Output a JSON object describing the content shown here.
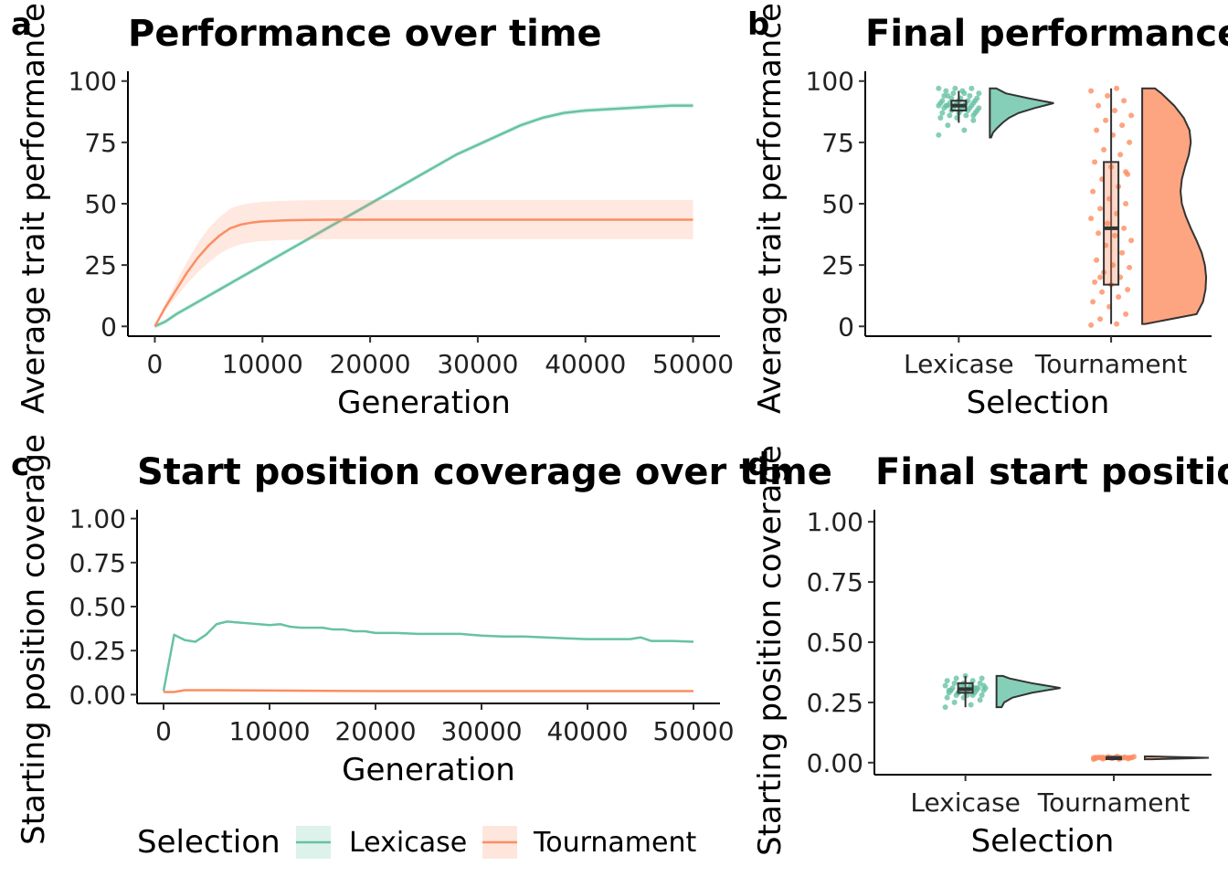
{
  "colors": {
    "lexicase": "#66c2a5",
    "tournament": "#fc8d62",
    "axis": "#000000"
  },
  "legend": {
    "title": "Selection",
    "items": [
      "Lexicase",
      "Tournament"
    ]
  },
  "chart_data": [
    {
      "panel": "a",
      "type": "line",
      "title": "Performance over time",
      "xlabel": "Generation",
      "ylabel": "Average trait performance",
      "xlim": [
        -2500,
        52500
      ],
      "ylim": [
        -4,
        104
      ],
      "xticks": [
        0,
        10000,
        20000,
        30000,
        40000,
        50000
      ],
      "xticklabels": [
        "0",
        "10000",
        "20000",
        "30000",
        "40000",
        "50000"
      ],
      "yticks": [
        0,
        25,
        50,
        75,
        100
      ],
      "yticklabels": [
        "0",
        "25",
        "50",
        "75",
        "100"
      ],
      "series": [
        {
          "name": "Lexicase",
          "x": [
            0,
            1000,
            2000,
            4000,
            6000,
            8000,
            10000,
            12000,
            14000,
            16000,
            18000,
            20000,
            22000,
            24000,
            26000,
            28000,
            30000,
            32000,
            34000,
            36000,
            38000,
            40000,
            42000,
            44000,
            46000,
            48000,
            50000
          ],
          "y": [
            0,
            2,
            5,
            10,
            15,
            20,
            25,
            30,
            35,
            40,
            45,
            50,
            55,
            60,
            65,
            70,
            74,
            78,
            82,
            85,
            87,
            88,
            88.5,
            89,
            89.5,
            90,
            90
          ],
          "band": [
            1,
            1,
            1,
            1,
            1,
            1,
            1,
            1,
            1,
            1,
            1,
            1,
            1,
            1,
            1,
            1,
            1,
            1,
            1,
            1,
            1,
            1,
            1,
            1,
            1,
            1,
            1
          ]
        },
        {
          "name": "Tournament",
          "x": [
            0,
            1000,
            2000,
            3000,
            4000,
            5000,
            6000,
            7000,
            8000,
            9000,
            10000,
            12000,
            14000,
            16000,
            20000,
            30000,
            40000,
            50000
          ],
          "y": [
            0,
            8,
            15,
            22,
            28,
            33,
            37,
            40,
            41.5,
            42.3,
            42.8,
            43.2,
            43.4,
            43.5,
            43.5,
            43.5,
            43.5,
            43.5
          ],
          "band": [
            0,
            1.5,
            3,
            4.5,
            6,
            7,
            7.5,
            8,
            8,
            8,
            8,
            8,
            8,
            8,
            8,
            8,
            8,
            8
          ]
        }
      ]
    },
    {
      "panel": "b",
      "type": "raincloud",
      "title": "Final performance",
      "xlabel": "Selection",
      "ylabel": "Average trait performance",
      "ylim": [
        -4,
        104
      ],
      "yticks": [
        0,
        25,
        50,
        75,
        100
      ],
      "yticklabels": [
        "0",
        "25",
        "50",
        "75",
        "100"
      ],
      "categories": [
        "Lexicase",
        "Tournament"
      ],
      "boxes": [
        {
          "q1": 88,
          "median": 90,
          "q3": 92,
          "lower_whisker": 83,
          "upper_whisker": 96
        },
        {
          "q1": 17,
          "median": 40,
          "q3": 67,
          "lower_whisker": 1,
          "upper_whisker": 97
        }
      ],
      "points": [
        [
          78,
          80,
          82,
          84,
          85,
          85,
          86,
          86,
          87,
          87,
          87,
          88,
          88,
          88,
          88,
          89,
          89,
          89,
          89,
          89,
          90,
          90,
          90,
          90,
          90,
          90,
          91,
          91,
          91,
          91,
          91,
          92,
          92,
          92,
          92,
          93,
          93,
          93,
          94,
          94,
          95,
          95,
          96,
          96,
          97,
          97,
          97,
          95,
          94,
          86
        ],
        [
          0.5,
          1,
          3,
          5,
          8,
          10,
          12,
          14,
          15,
          17,
          18,
          20,
          22,
          24,
          25,
          27,
          30,
          33,
          35,
          37,
          38,
          40,
          42,
          44,
          46,
          48,
          50,
          52,
          55,
          57,
          60,
          62,
          65,
          67,
          70,
          72,
          75,
          78,
          80,
          82,
          84,
          86,
          88,
          90,
          92,
          94,
          96,
          97,
          20,
          63
        ]
      ],
      "density": [
        {
          "y": [
            77,
            79,
            81,
            83,
            85,
            87,
            89,
            91,
            93,
            95,
            97
          ],
          "d": [
            0.02,
            0.05,
            0.12,
            0.2,
            0.3,
            0.45,
            0.7,
            1.0,
            0.6,
            0.25,
            0.1
          ]
        },
        {
          "y": [
            1,
            5,
            10,
            15,
            20,
            25,
            30,
            35,
            40,
            45,
            50,
            55,
            60,
            65,
            70,
            75,
            80,
            85,
            90,
            95,
            97
          ],
          "d": [
            0.05,
            0.85,
            0.95,
            0.99,
            1.0,
            0.98,
            0.93,
            0.85,
            0.76,
            0.68,
            0.62,
            0.6,
            0.62,
            0.67,
            0.73,
            0.76,
            0.74,
            0.65,
            0.5,
            0.3,
            0.2
          ]
        }
      ]
    },
    {
      "panel": "c",
      "type": "line",
      "title": "Start position coverage over time",
      "xlabel": "Generation",
      "ylabel": "Starting position coverage",
      "xlim": [
        -2500,
        52500
      ],
      "ylim": [
        -0.05,
        1.05
      ],
      "xticks": [
        0,
        10000,
        20000,
        30000,
        40000,
        50000
      ],
      "xticklabels": [
        "0",
        "10000",
        "20000",
        "30000",
        "40000",
        "50000"
      ],
      "yticks": [
        0,
        0.25,
        0.5,
        0.75,
        1.0
      ],
      "yticklabels": [
        "0.00",
        "0.25",
        "0.50",
        "0.75",
        "1.00"
      ],
      "series": [
        {
          "name": "Lexicase",
          "x": [
            0,
            1000,
            2000,
            3000,
            4000,
            5000,
            6000,
            7000,
            8000,
            9000,
            10000,
            11000,
            12000,
            13000,
            14000,
            15000,
            16000,
            17000,
            18000,
            19000,
            20000,
            22000,
            24000,
            26000,
            28000,
            30000,
            32000,
            34000,
            36000,
            38000,
            40000,
            42000,
            44000,
            45000,
            46000,
            48000,
            50000
          ],
          "y": [
            0.02,
            0.34,
            0.31,
            0.3,
            0.34,
            0.4,
            0.415,
            0.41,
            0.405,
            0.4,
            0.395,
            0.4,
            0.385,
            0.38,
            0.38,
            0.38,
            0.37,
            0.37,
            0.36,
            0.36,
            0.35,
            0.35,
            0.345,
            0.345,
            0.345,
            0.335,
            0.33,
            0.33,
            0.325,
            0.32,
            0.315,
            0.315,
            0.315,
            0.325,
            0.305,
            0.305,
            0.3
          ]
        },
        {
          "name": "Tournament",
          "x": [
            0,
            1000,
            2000,
            5000,
            10000,
            20000,
            30000,
            40000,
            50000
          ],
          "y": [
            0.015,
            0.015,
            0.025,
            0.025,
            0.023,
            0.02,
            0.02,
            0.02,
            0.02
          ]
        }
      ]
    },
    {
      "panel": "d",
      "type": "raincloud",
      "title": "Final start position coverage",
      "xlabel": "Selection",
      "ylabel": "Starting position coverage",
      "ylim": [
        -0.05,
        1.05
      ],
      "yticks": [
        0,
        0.25,
        0.5,
        0.75,
        1.0
      ],
      "yticklabels": [
        "0.00",
        "0.25",
        "0.50",
        "0.75",
        "1.00"
      ],
      "categories": [
        "Lexicase",
        "Tournament"
      ],
      "boxes": [
        {
          "q1": 0.29,
          "median": 0.305,
          "q3": 0.33,
          "lower_whisker": 0.23,
          "upper_whisker": 0.36
        },
        {
          "q1": 0.018,
          "median": 0.02,
          "q3": 0.022,
          "lower_whisker": 0.014,
          "upper_whisker": 0.026
        }
      ],
      "points": [
        [
          0.23,
          0.24,
          0.25,
          0.26,
          0.27,
          0.27,
          0.28,
          0.28,
          0.28,
          0.29,
          0.29,
          0.29,
          0.29,
          0.3,
          0.3,
          0.3,
          0.3,
          0.3,
          0.31,
          0.31,
          0.31,
          0.31,
          0.32,
          0.32,
          0.32,
          0.33,
          0.33,
          0.33,
          0.34,
          0.34,
          0.35,
          0.35,
          0.36,
          0.3,
          0.31,
          0.29,
          0.32,
          0.28,
          0.3,
          0.31
        ],
        [
          0.014,
          0.015,
          0.016,
          0.017,
          0.018,
          0.018,
          0.019,
          0.019,
          0.02,
          0.02,
          0.02,
          0.02,
          0.021,
          0.021,
          0.022,
          0.022,
          0.023,
          0.024,
          0.025,
          0.026,
          0.02,
          0.019,
          0.021,
          0.02,
          0.018,
          0.022,
          0.02,
          0.019,
          0.021,
          0.02
        ]
      ],
      "density": [
        {
          "y": [
            0.23,
            0.25,
            0.27,
            0.29,
            0.31,
            0.33,
            0.35,
            0.36
          ],
          "d": [
            0.08,
            0.12,
            0.25,
            0.55,
            1.0,
            0.55,
            0.2,
            0.1
          ]
        },
        {
          "y": [
            0.014,
            0.018,
            0.02,
            0.022,
            0.026
          ],
          "d": [
            0.1,
            0.7,
            1.0,
            0.7,
            0.1
          ]
        }
      ]
    }
  ]
}
